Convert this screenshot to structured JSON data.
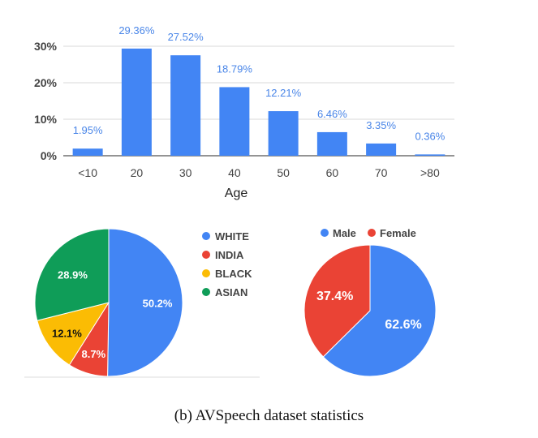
{
  "caption": "(b) AVSpeech dataset statistics",
  "chart_data": [
    {
      "type": "bar",
      "xlabel": "Age",
      "ylabel": "",
      "categories": [
        "<10",
        "20",
        "30",
        "40",
        "50",
        "60",
        "70",
        ">80"
      ],
      "values": [
        1.95,
        29.36,
        27.52,
        18.79,
        12.21,
        6.46,
        3.35,
        0.36
      ],
      "data_labels": [
        "1.95%",
        "29.36%",
        "27.52%",
        "18.79%",
        "12.21%",
        "6.46%",
        "3.35%",
        "0.36%"
      ],
      "ylim": [
        0,
        30
      ],
      "yticks": [
        0,
        10,
        20,
        30
      ],
      "ytick_labels": [
        "0%",
        "10%",
        "20%",
        "30%"
      ],
      "grid": true,
      "color": "#4285f4"
    },
    {
      "type": "pie",
      "categories": [
        "WHITE",
        "INDIA",
        "BLACK",
        "ASIAN"
      ],
      "values": [
        50.2,
        8.7,
        12.1,
        28.9
      ],
      "data_labels": [
        "50.2%",
        "8.7%",
        "12.1%",
        "28.9%"
      ],
      "colors": [
        "#4285f4",
        "#ea4335",
        "#fbbc04",
        "#0f9d58"
      ],
      "label_colors": [
        "#ffffff",
        "#ffffff",
        "#111111",
        "#ffffff"
      ],
      "legend": "right"
    },
    {
      "type": "pie",
      "categories": [
        "Male",
        "Female"
      ],
      "values": [
        62.6,
        37.4
      ],
      "data_labels": [
        "62.6%",
        "37.4%"
      ],
      "colors": [
        "#4285f4",
        "#ea4335"
      ],
      "label_colors": [
        "#ffffff",
        "#ffffff"
      ],
      "legend": "top"
    }
  ]
}
